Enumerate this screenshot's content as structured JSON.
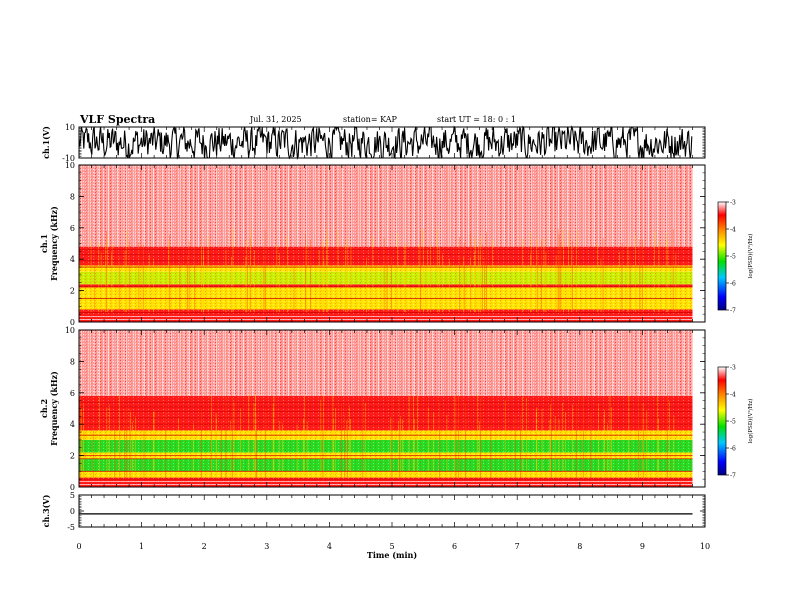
{
  "header": {
    "title": "VLF Spectra",
    "date": "Jul. 31, 2025",
    "station": "station= KAP",
    "start": "start UT = 18: 0 : 1"
  },
  "colors": {
    "bg": "#ffffff",
    "axis": "#000000",
    "spec_red": "#ff1a1a",
    "spec_light": "#ff9a9a",
    "spec_yellow": "#ffe600",
    "spec_green": "#22dd22",
    "colorbar": [
      "#000080",
      "#0000ff",
      "#00c8ff",
      "#00e000",
      "#ffff00",
      "#ff8000",
      "#ff0000",
      "#ffffff"
    ]
  },
  "chart_data": [
    {
      "id": "ch1_waveform",
      "type": "line",
      "ylabel": "ch.1(V)",
      "ylim": [
        -10,
        10
      ],
      "yticks": [
        "10",
        "-10"
      ],
      "xlim": [
        0,
        10
      ],
      "data_end_min": 9.8,
      "description_series": {
        "name": "ch.1 voltage",
        "amplitude_range": [
          -10,
          10
        ]
      }
    },
    {
      "id": "ch1_spectrogram",
      "type": "heatmap",
      "ylabel": "ch.1",
      "ylabel2": "Frequency (kHz)",
      "ylim": [
        0,
        10
      ],
      "yticks": [
        "0",
        "2",
        "4",
        "6",
        "8",
        "10"
      ],
      "xlim": [
        0,
        10
      ],
      "data_end_min": 9.8,
      "bands": [
        {
          "from_khz": 0.0,
          "to_khz": 0.8,
          "level": "red"
        },
        {
          "from_khz": 0.8,
          "to_khz": 1.6,
          "level": "yellow"
        },
        {
          "from_khz": 1.6,
          "to_khz": 2.2,
          "level": "yellow"
        },
        {
          "from_khz": 2.2,
          "to_khz": 2.4,
          "level": "red"
        },
        {
          "from_khz": 2.4,
          "to_khz": 3.2,
          "level": "yellow-green"
        },
        {
          "from_khz": 3.2,
          "to_khz": 3.6,
          "level": "yellow"
        },
        {
          "from_khz": 3.6,
          "to_khz": 4.8,
          "level": "red"
        },
        {
          "from_khz": 4.8,
          "to_khz": 10.0,
          "level": "light"
        }
      ],
      "colorbar": {
        "label": "log(PSD)(V²/Hz)",
        "ticks": [
          "-3",
          "-4",
          "-5",
          "-6",
          "-7"
        ],
        "range": [
          -7,
          -3
        ]
      }
    },
    {
      "id": "ch2_spectrogram",
      "type": "heatmap",
      "ylabel": "ch.2",
      "ylabel2": "Frequency (kHz)",
      "ylim": [
        0,
        10
      ],
      "yticks": [
        "0",
        "2",
        "4",
        "6",
        "8",
        "10"
      ],
      "xlim": [
        0,
        10
      ],
      "data_end_min": 9.8,
      "bands": [
        {
          "from_khz": 0.0,
          "to_khz": 0.6,
          "level": "red"
        },
        {
          "from_khz": 0.6,
          "to_khz": 1.0,
          "level": "yellow"
        },
        {
          "from_khz": 1.0,
          "to_khz": 1.8,
          "level": "green"
        },
        {
          "from_khz": 1.8,
          "to_khz": 2.2,
          "level": "yellow"
        },
        {
          "from_khz": 2.2,
          "to_khz": 3.0,
          "level": "green"
        },
        {
          "from_khz": 3.0,
          "to_khz": 3.6,
          "level": "yellow"
        },
        {
          "from_khz": 3.6,
          "to_khz": 5.8,
          "level": "red"
        },
        {
          "from_khz": 5.8,
          "to_khz": 10.0,
          "level": "light"
        }
      ],
      "colorbar": {
        "label": "log(PSD)(V²/Hz)",
        "ticks": [
          "-3",
          "-4",
          "-5",
          "-6",
          "-7"
        ],
        "range": [
          -7,
          -3
        ]
      }
    },
    {
      "id": "ch3_waveform",
      "type": "line",
      "ylabel": "ch.3(V)",
      "ylim": [
        -5,
        5
      ],
      "yticks": [
        "5",
        "0",
        "-5"
      ],
      "xlim": [
        0,
        10
      ],
      "data_end_min": 9.8,
      "description_series": {
        "name": "ch.3 voltage",
        "amplitude_range": [
          -1.1,
          -0.7
        ]
      },
      "xlabel": "Time (min)",
      "xticks": [
        "0",
        "1",
        "2",
        "3",
        "4",
        "5",
        "6",
        "7",
        "8",
        "9",
        "10"
      ]
    }
  ]
}
